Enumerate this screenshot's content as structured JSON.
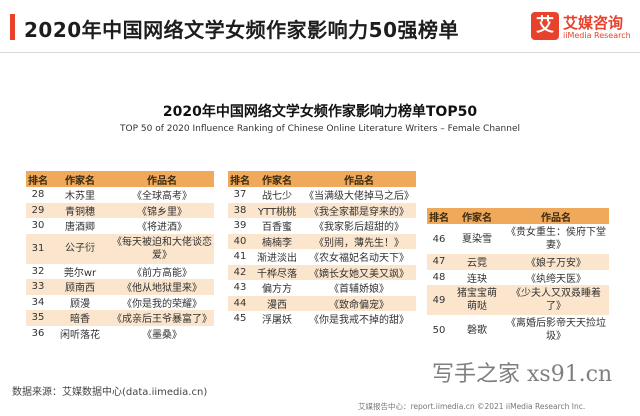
{
  "header": {
    "title": "2020年中国网络文学女频作家影响力50强榜单",
    "logo_mark": "艾",
    "logo_cn": "艾媒咨询",
    "logo_en": "iiMedia Research"
  },
  "chart_data": {
    "type": "table",
    "title": "2020年中国网络文学女频作家影响力榜单TOP50",
    "subtitle": "TOP 50 of 2020 Influence Ranking of Chinese Online Literature Writers – Female Channel",
    "columns": [
      "排名",
      "作家名",
      "作品名"
    ],
    "tables": [
      {
        "rows": [
          {
            "rank": "28",
            "author": "木苏里",
            "work": "《全球高考》"
          },
          {
            "rank": "29",
            "author": "青铜穗",
            "work": "《锦乡里》"
          },
          {
            "rank": "30",
            "author": "唐酒卿",
            "work": "《将进酒》"
          },
          {
            "rank": "31",
            "author": "公子衍",
            "work": "《每天被迫和大佬谈恋爱》"
          },
          {
            "rank": "32",
            "author": "莞尔wr",
            "work": "《前方高能》"
          },
          {
            "rank": "33",
            "author": "顾南西",
            "work": "《他从地狱里来》"
          },
          {
            "rank": "34",
            "author": "顾漫",
            "work": "《你是我的荣耀》"
          },
          {
            "rank": "35",
            "author": "暗香",
            "work": "《成亲后王爷暴富了》"
          },
          {
            "rank": "36",
            "author": "闲听落花",
            "work": "《墨桑》"
          }
        ]
      },
      {
        "rows": [
          {
            "rank": "37",
            "author": "战七少",
            "work": "《当满级大佬掉马之后》"
          },
          {
            "rank": "38",
            "author": "YTT桃桃",
            "work": "《我全家都是穿来的》"
          },
          {
            "rank": "39",
            "author": "百香蜜",
            "work": "《我家影后超甜的》"
          },
          {
            "rank": "40",
            "author": "楠楠李",
            "work": "《别闹，薄先生！》"
          },
          {
            "rank": "41",
            "author": "渐进淡出",
            "work": "《农女福妃名动天下》"
          },
          {
            "rank": "42",
            "author": "千桦尽落",
            "work": "《嫡长女她又美又飒》"
          },
          {
            "rank": "43",
            "author": "偏方方",
            "work": "《首辅娇娘》"
          },
          {
            "rank": "44",
            "author": "漫西",
            "work": "《致命偏宠》"
          },
          {
            "rank": "45",
            "author": "浮屠妖",
            "work": "《你是我戒不掉的甜》"
          }
        ]
      },
      {
        "rows": [
          {
            "rank": "46",
            "author": "夏染雪",
            "work": "《贵女重生：侯府下堂妻》"
          },
          {
            "rank": "47",
            "author": "云霓",
            "work": "《娘子万安》"
          },
          {
            "rank": "48",
            "author": "连玦",
            "work": "《纨绔天医》"
          },
          {
            "rank": "49",
            "author": "猪宝宝萌萌哒",
            "work": "《少夫人又双叒睡着了》"
          },
          {
            "rank": "50",
            "author": "磬歌",
            "work": "《离婚后影帝天天捡垃圾》"
          }
        ]
      }
    ]
  },
  "source": "数据来源：艾媒数据中心(data.iimedia.cn)",
  "footer": "艾媒报告中心：report.iimedia.cn  ©2021  iiMedia Research  Inc.",
  "watermark": "写手之家 xs91.cn"
}
